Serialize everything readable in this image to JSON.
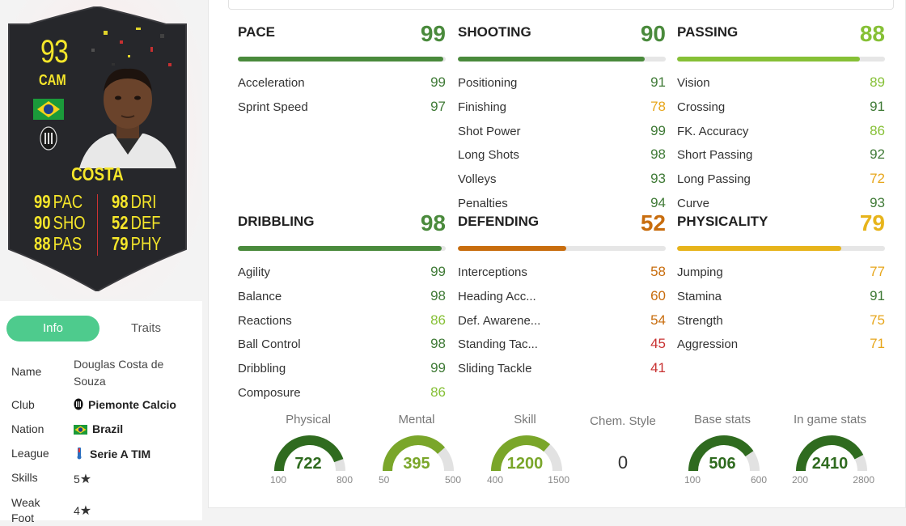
{
  "card": {
    "rating": "93",
    "position": "CAM",
    "name": "COSTA",
    "stats_left": [
      {
        "value": "99",
        "label": "PAC"
      },
      {
        "value": "90",
        "label": "SHO"
      },
      {
        "value": "88",
        "label": "PAS"
      }
    ],
    "stats_right": [
      {
        "value": "98",
        "label": "DRI"
      },
      {
        "value": "52",
        "label": "DEF"
      },
      {
        "value": "79",
        "label": "PHY"
      }
    ],
    "colors": {
      "text": "#f5e62a",
      "background": "#26272b"
    }
  },
  "tabs": {
    "info": "Info",
    "traits": "Traits"
  },
  "info": {
    "name_label": "Name",
    "name_value": "Douglas Costa de Souza",
    "club_label": "Club",
    "club_value": "Piemonte Calcio",
    "nation_label": "Nation",
    "nation_value": "Brazil",
    "league_label": "League",
    "league_value": "Serie A TIM",
    "skills_label": "Skills",
    "skills_value": "5",
    "weakfoot_label": "Weak Foot",
    "weakfoot_value": "4",
    "star_icon": "★"
  },
  "categories": {
    "pace": {
      "title": "PACE",
      "value": "99",
      "fill_percent": 99,
      "color": "#4a8a3c",
      "attrs": [
        {
          "name": "Acceleration",
          "value": "99",
          "tone": "c-dg"
        },
        {
          "name": "Sprint Speed",
          "value": "97",
          "tone": "c-dg"
        }
      ]
    },
    "shooting": {
      "title": "SHOOTING",
      "value": "90",
      "fill_percent": 90,
      "color": "#4a8a3c",
      "attrs": [
        {
          "name": "Positioning",
          "value": "91",
          "tone": "c-dg"
        },
        {
          "name": "Finishing",
          "value": "78",
          "tone": "c-yl"
        },
        {
          "name": "Shot Power",
          "value": "99",
          "tone": "c-dg"
        },
        {
          "name": "Long Shots",
          "value": "98",
          "tone": "c-dg"
        },
        {
          "name": "Volleys",
          "value": "93",
          "tone": "c-dg"
        },
        {
          "name": "Penalties",
          "value": "94",
          "tone": "c-dg"
        }
      ]
    },
    "passing": {
      "title": "PASSING",
      "value": "88",
      "fill_percent": 88,
      "color": "#86c036",
      "attrs": [
        {
          "name": "Vision",
          "value": "89",
          "tone": "c-lg"
        },
        {
          "name": "Crossing",
          "value": "91",
          "tone": "c-dg"
        },
        {
          "name": "FK. Accuracy",
          "value": "86",
          "tone": "c-lg"
        },
        {
          "name": "Short Passing",
          "value": "92",
          "tone": "c-dg"
        },
        {
          "name": "Long Passing",
          "value": "72",
          "tone": "c-yl"
        },
        {
          "name": "Curve",
          "value": "93",
          "tone": "c-dg"
        }
      ]
    },
    "dribbling": {
      "title": "DRIBBLING",
      "value": "98",
      "fill_percent": 98,
      "color": "#4a8a3c",
      "attrs": [
        {
          "name": "Agility",
          "value": "99",
          "tone": "c-dg"
        },
        {
          "name": "Balance",
          "value": "98",
          "tone": "c-dg"
        },
        {
          "name": "Reactions",
          "value": "86",
          "tone": "c-lg"
        },
        {
          "name": "Ball Control",
          "value": "98",
          "tone": "c-dg"
        },
        {
          "name": "Dribbling",
          "value": "99",
          "tone": "c-dg"
        },
        {
          "name": "Composure",
          "value": "86",
          "tone": "c-lg"
        }
      ]
    },
    "defending": {
      "title": "DEFENDING",
      "value": "52",
      "fill_percent": 52,
      "color": "#c86d0e",
      "attrs": [
        {
          "name": "Interceptions",
          "value": "58",
          "tone": "c-or"
        },
        {
          "name": "Heading Acc...",
          "value": "60",
          "tone": "c-or"
        },
        {
          "name": "Def. Awarene...",
          "value": "54",
          "tone": "c-or"
        },
        {
          "name": "Standing Tac...",
          "value": "45",
          "tone": "c-rd"
        },
        {
          "name": "Sliding Tackle",
          "value": "41",
          "tone": "c-rd"
        }
      ]
    },
    "physicality": {
      "title": "PHYSICALITY",
      "value": "79",
      "fill_percent": 79,
      "color": "#e7b41b",
      "attrs": [
        {
          "name": "Jumping",
          "value": "77",
          "tone": "c-yl"
        },
        {
          "name": "Stamina",
          "value": "91",
          "tone": "c-dg"
        },
        {
          "name": "Strength",
          "value": "75",
          "tone": "c-yl"
        },
        {
          "name": "Aggression",
          "value": "71",
          "tone": "c-yl"
        }
      ]
    }
  },
  "gauges": [
    {
      "label": "Physical",
      "value": "722",
      "min": "100",
      "max": "800",
      "fraction": 0.89,
      "color": "#2f6b1f"
    },
    {
      "label": "Mental",
      "value": "395",
      "min": "50",
      "max": "500",
      "fraction": 0.77,
      "color": "#7aa62a"
    },
    {
      "label": "Skill",
      "value": "1200",
      "min": "400",
      "max": "1500",
      "fraction": 0.73,
      "color": "#7aa62a"
    },
    {
      "label": "Base stats",
      "value": "506",
      "min": "100",
      "max": "600",
      "fraction": 0.81,
      "color": "#2f6b1f"
    },
    {
      "label": "In game stats",
      "value": "2410",
      "min": "200",
      "max": "2800",
      "fraction": 0.85,
      "color": "#2f6b1f"
    }
  ],
  "chem_style": {
    "label": "Chem. Style",
    "value": "0"
  }
}
